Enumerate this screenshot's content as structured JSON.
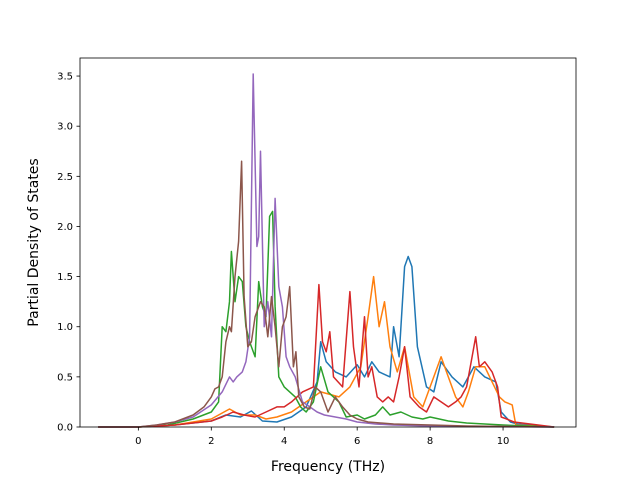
{
  "chart_data": {
    "type": "line",
    "title": "",
    "xlabel": "Frequency (THz)",
    "ylabel": "Partial Density of States",
    "xlim": [
      -1.6,
      12.0
    ],
    "ylim": [
      0.0,
      3.68
    ],
    "xticks": [
      0,
      2,
      4,
      6,
      8,
      10
    ],
    "yticks": [
      0.0,
      0.5,
      1.0,
      1.5,
      2.0,
      2.5,
      3.0,
      3.5
    ],
    "xtick_labels": [
      "0",
      "2",
      "4",
      "6",
      "8",
      "10"
    ],
    "ytick_labels": [
      "0.0",
      "0.5",
      "1.0",
      "1.5",
      "2.0",
      "2.5",
      "3.0",
      "3.5"
    ],
    "grid": false,
    "legend": "none",
    "series": [
      {
        "color": "#1f77b4",
        "points": [
          [
            -1.1,
            0
          ],
          [
            0,
            0
          ],
          [
            1,
            0.02
          ],
          [
            2,
            0.06
          ],
          [
            2.4,
            0.12
          ],
          [
            2.8,
            0.1
          ],
          [
            3.1,
            0.16
          ],
          [
            3.4,
            0.06
          ],
          [
            3.8,
            0.05
          ],
          [
            4.2,
            0.1
          ],
          [
            4.6,
            0.2
          ],
          [
            4.9,
            0.45
          ],
          [
            5.0,
            0.85
          ],
          [
            5.15,
            0.65
          ],
          [
            5.4,
            0.55
          ],
          [
            5.7,
            0.5
          ],
          [
            6.0,
            0.62
          ],
          [
            6.2,
            0.5
          ],
          [
            6.4,
            0.65
          ],
          [
            6.6,
            0.55
          ],
          [
            6.9,
            0.5
          ],
          [
            7.0,
            1.0
          ],
          [
            7.15,
            0.7
          ],
          [
            7.3,
            1.6
          ],
          [
            7.4,
            1.7
          ],
          [
            7.5,
            1.6
          ],
          [
            7.65,
            0.8
          ],
          [
            7.9,
            0.4
          ],
          [
            8.1,
            0.35
          ],
          [
            8.3,
            0.65
          ],
          [
            8.6,
            0.5
          ],
          [
            8.9,
            0.4
          ],
          [
            9.2,
            0.6
          ],
          [
            9.5,
            0.5
          ],
          [
            9.8,
            0.45
          ],
          [
            9.95,
            0.15
          ],
          [
            10.2,
            0.05
          ],
          [
            10.4,
            0.03
          ],
          [
            11.4,
            0
          ]
        ]
      },
      {
        "color": "#ff7f0e",
        "points": [
          [
            -1.1,
            0
          ],
          [
            0,
            0
          ],
          [
            1,
            0.02
          ],
          [
            2,
            0.08
          ],
          [
            2.5,
            0.18
          ],
          [
            2.8,
            0.12
          ],
          [
            3.2,
            0.12
          ],
          [
            3.5,
            0.08
          ],
          [
            3.8,
            0.1
          ],
          [
            4.2,
            0.15
          ],
          [
            4.6,
            0.25
          ],
          [
            5.0,
            0.35
          ],
          [
            5.5,
            0.3
          ],
          [
            5.8,
            0.4
          ],
          [
            6.1,
            0.6
          ],
          [
            6.3,
            1.1
          ],
          [
            6.45,
            1.5
          ],
          [
            6.6,
            1.0
          ],
          [
            6.75,
            1.25
          ],
          [
            6.9,
            0.8
          ],
          [
            7.1,
            0.55
          ],
          [
            7.3,
            0.8
          ],
          [
            7.55,
            0.3
          ],
          [
            7.8,
            0.2
          ],
          [
            8.0,
            0.4
          ],
          [
            8.15,
            0.55
          ],
          [
            8.3,
            0.7
          ],
          [
            8.45,
            0.55
          ],
          [
            8.7,
            0.3
          ],
          [
            8.9,
            0.2
          ],
          [
            9.05,
            0.35
          ],
          [
            9.25,
            0.6
          ],
          [
            9.5,
            0.6
          ],
          [
            9.7,
            0.45
          ],
          [
            9.9,
            0.3
          ],
          [
            10.05,
            0.25
          ],
          [
            10.25,
            0.22
          ],
          [
            10.35,
            0.02
          ],
          [
            11.4,
            0
          ]
        ]
      },
      {
        "color": "#2ca02c",
        "points": [
          [
            -1.1,
            0
          ],
          [
            0,
            0
          ],
          [
            0.8,
            0.02
          ],
          [
            1.5,
            0.08
          ],
          [
            2.0,
            0.15
          ],
          [
            2.2,
            0.25
          ],
          [
            2.3,
            1.0
          ],
          [
            2.4,
            0.95
          ],
          [
            2.5,
            1.25
          ],
          [
            2.55,
            1.75
          ],
          [
            2.65,
            1.25
          ],
          [
            2.75,
            1.5
          ],
          [
            2.85,
            1.45
          ],
          [
            2.95,
            1.0
          ],
          [
            3.05,
            0.85
          ],
          [
            3.2,
            0.7
          ],
          [
            3.3,
            1.45
          ],
          [
            3.4,
            1.2
          ],
          [
            3.5,
            1.1
          ],
          [
            3.6,
            2.1
          ],
          [
            3.68,
            2.15
          ],
          [
            3.75,
            1.2
          ],
          [
            3.85,
            0.5
          ],
          [
            4.0,
            0.4
          ],
          [
            4.15,
            0.35
          ],
          [
            4.3,
            0.3
          ],
          [
            4.45,
            0.2
          ],
          [
            4.6,
            0.15
          ],
          [
            4.8,
            0.25
          ],
          [
            5.0,
            0.6
          ],
          [
            5.2,
            0.35
          ],
          [
            5.5,
            0.25
          ],
          [
            5.7,
            0.1
          ],
          [
            6.0,
            0.12
          ],
          [
            6.2,
            0.08
          ],
          [
            6.5,
            0.12
          ],
          [
            6.7,
            0.2
          ],
          [
            6.9,
            0.12
          ],
          [
            7.2,
            0.15
          ],
          [
            7.5,
            0.1
          ],
          [
            7.8,
            0.08
          ],
          [
            8.0,
            0.1
          ],
          [
            8.5,
            0.06
          ],
          [
            9.0,
            0.04
          ],
          [
            9.5,
            0.03
          ],
          [
            10,
            0.02
          ],
          [
            11.4,
            0
          ]
        ]
      },
      {
        "color": "#d62728",
        "points": [
          [
            -1.1,
            0
          ],
          [
            0,
            0
          ],
          [
            1,
            0.02
          ],
          [
            2,
            0.06
          ],
          [
            2.3,
            0.1
          ],
          [
            2.6,
            0.15
          ],
          [
            2.9,
            0.12
          ],
          [
            3.2,
            0.1
          ],
          [
            3.5,
            0.15
          ],
          [
            3.8,
            0.2
          ],
          [
            4.0,
            0.2
          ],
          [
            4.2,
            0.25
          ],
          [
            4.5,
            0.35
          ],
          [
            4.8,
            0.4
          ],
          [
            4.95,
            1.42
          ],
          [
            5.05,
            0.85
          ],
          [
            5.15,
            0.75
          ],
          [
            5.25,
            0.95
          ],
          [
            5.35,
            0.5
          ],
          [
            5.6,
            0.4
          ],
          [
            5.8,
            1.35
          ],
          [
            5.9,
            0.8
          ],
          [
            6.05,
            0.4
          ],
          [
            6.2,
            1.1
          ],
          [
            6.3,
            0.5
          ],
          [
            6.4,
            0.6
          ],
          [
            6.55,
            0.3
          ],
          [
            6.7,
            0.25
          ],
          [
            6.85,
            0.3
          ],
          [
            7.0,
            0.25
          ],
          [
            7.15,
            0.5
          ],
          [
            7.3,
            0.8
          ],
          [
            7.45,
            0.3
          ],
          [
            7.7,
            0.2
          ],
          [
            7.9,
            0.15
          ],
          [
            8.1,
            0.3
          ],
          [
            8.3,
            0.25
          ],
          [
            8.5,
            0.2
          ],
          [
            8.7,
            0.25
          ],
          [
            8.85,
            0.3
          ],
          [
            9.0,
            0.4
          ],
          [
            9.15,
            0.7
          ],
          [
            9.25,
            0.9
          ],
          [
            9.35,
            0.6
          ],
          [
            9.5,
            0.65
          ],
          [
            9.7,
            0.55
          ],
          [
            9.85,
            0.4
          ],
          [
            9.95,
            0.1
          ],
          [
            10.1,
            0.08
          ],
          [
            10.3,
            0.05
          ],
          [
            11.4,
            0
          ]
        ]
      },
      {
        "color": "#9467bd",
        "points": [
          [
            -1.1,
            0
          ],
          [
            0,
            0
          ],
          [
            0.5,
            0.02
          ],
          [
            1.0,
            0.05
          ],
          [
            1.5,
            0.1
          ],
          [
            2.0,
            0.22
          ],
          [
            2.3,
            0.35
          ],
          [
            2.5,
            0.5
          ],
          [
            2.6,
            0.45
          ],
          [
            2.7,
            0.5
          ],
          [
            2.85,
            0.55
          ],
          [
            2.95,
            0.65
          ],
          [
            3.05,
            0.9
          ],
          [
            3.15,
            3.52
          ],
          [
            3.25,
            1.8
          ],
          [
            3.3,
            1.9
          ],
          [
            3.35,
            2.75
          ],
          [
            3.45,
            1.0
          ],
          [
            3.55,
            1.25
          ],
          [
            3.65,
            0.9
          ],
          [
            3.75,
            2.28
          ],
          [
            3.85,
            1.4
          ],
          [
            3.95,
            1.2
          ],
          [
            4.05,
            0.7
          ],
          [
            4.15,
            0.6
          ],
          [
            4.3,
            0.5
          ],
          [
            4.5,
            0.25
          ],
          [
            4.7,
            0.2
          ],
          [
            4.9,
            0.15
          ],
          [
            5.1,
            0.12
          ],
          [
            5.4,
            0.1
          ],
          [
            5.7,
            0.08
          ],
          [
            6.0,
            0.05
          ],
          [
            6.5,
            0.03
          ],
          [
            7,
            0.02
          ],
          [
            8,
            0.01
          ],
          [
            11.4,
            0
          ]
        ]
      },
      {
        "color": "#8c564b",
        "points": [
          [
            -1.1,
            0
          ],
          [
            0,
            0
          ],
          [
            0.5,
            0.02
          ],
          [
            1.0,
            0.05
          ],
          [
            1.5,
            0.12
          ],
          [
            1.8,
            0.2
          ],
          [
            2.0,
            0.3
          ],
          [
            2.1,
            0.38
          ],
          [
            2.2,
            0.4
          ],
          [
            2.3,
            0.5
          ],
          [
            2.4,
            0.85
          ],
          [
            2.5,
            1.0
          ],
          [
            2.55,
            0.95
          ],
          [
            2.65,
            1.5
          ],
          [
            2.75,
            1.85
          ],
          [
            2.83,
            2.65
          ],
          [
            2.9,
            1.3
          ],
          [
            3.0,
            0.8
          ],
          [
            3.1,
            0.85
          ],
          [
            3.2,
            1.1
          ],
          [
            3.35,
            1.25
          ],
          [
            3.45,
            1.2
          ],
          [
            3.55,
            0.9
          ],
          [
            3.65,
            1.3
          ],
          [
            3.75,
            1.0
          ],
          [
            3.85,
            0.6
          ],
          [
            3.95,
            1.0
          ],
          [
            4.05,
            1.1
          ],
          [
            4.15,
            1.4
          ],
          [
            4.25,
            0.6
          ],
          [
            4.32,
            0.75
          ],
          [
            4.4,
            0.3
          ],
          [
            4.55,
            0.2
          ],
          [
            4.7,
            0.18
          ],
          [
            4.85,
            0.4
          ],
          [
            5.0,
            0.35
          ],
          [
            5.2,
            0.15
          ],
          [
            5.4,
            0.3
          ],
          [
            5.6,
            0.2
          ],
          [
            5.8,
            0.12
          ],
          [
            6.0,
            0.08
          ],
          [
            6.3,
            0.05
          ],
          [
            7,
            0.03
          ],
          [
            8,
            0.02
          ],
          [
            9,
            0.01
          ],
          [
            11.4,
            0
          ]
        ]
      }
    ]
  }
}
